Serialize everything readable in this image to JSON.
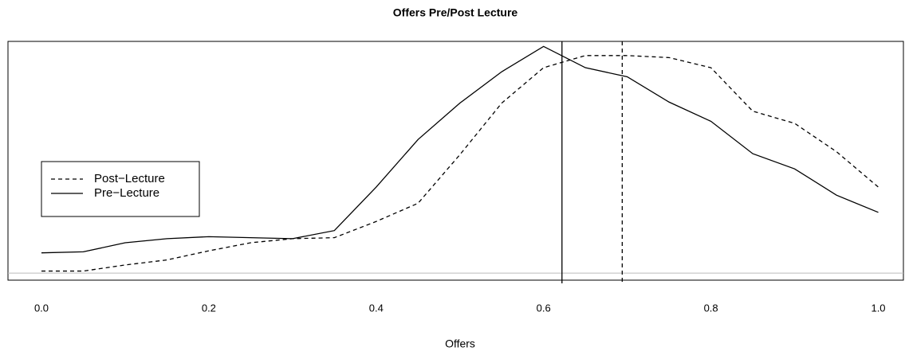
{
  "chart_data": {
    "type": "line",
    "title": "Offers Pre/Post Lecture",
    "x_label": "Offers",
    "x": [
      0,
      0.05,
      0.1,
      0.15,
      0.2,
      0.25,
      0.3,
      0.35,
      0.4,
      0.45,
      0.5,
      0.55,
      0.6,
      0.65,
      0.7,
      0.75,
      0.8,
      0.85,
      0.9,
      0.95,
      1.0
    ],
    "series": [
      {
        "name": "Post−Lecture",
        "color": "#000000",
        "dash": true,
        "mean": 0.694,
        "values": [
          0.02,
          0.02,
          0.08,
          0.13,
          0.22,
          0.3,
          0.34,
          0.35,
          0.51,
          0.69,
          1.17,
          1.68,
          2.03,
          2.15,
          2.15,
          2.13,
          2.03,
          1.6,
          1.48,
          1.2,
          0.85
        ]
      },
      {
        "name": "Pre−Lecture",
        "color": "#000000",
        "dash": false,
        "mean": 0.622,
        "values": [
          0.2,
          0.21,
          0.3,
          0.34,
          0.36,
          0.35,
          0.34,
          0.42,
          0.85,
          1.32,
          1.68,
          1.99,
          2.24,
          2.03,
          1.94,
          1.69,
          1.5,
          1.18,
          1.03,
          0.77,
          0.6
        ]
      }
    ],
    "xlim": [
      -0.04,
      1.03
    ],
    "ylim": [
      -0.07,
      2.29
    ],
    "xticks": [
      {
        "value": 0,
        "label": "0.0"
      },
      0.2,
      0.4,
      0.6,
      0.8,
      {
        "value": 1,
        "label": "1.0"
      }
    ],
    "legend": "left"
  }
}
